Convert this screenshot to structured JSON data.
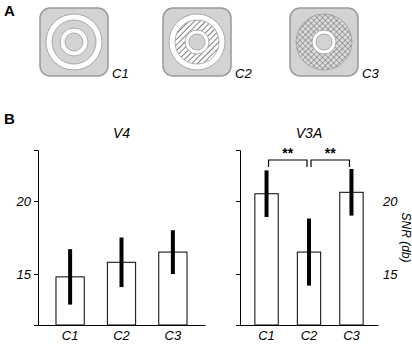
{
  "panels": {
    "A": {
      "label": "A",
      "icons": [
        "C1",
        "C2",
        "C3"
      ]
    },
    "B": {
      "label": "B"
    }
  },
  "chart_data": [
    {
      "type": "bar",
      "title": "V4",
      "categories": [
        "C1",
        "C2",
        "C3"
      ],
      "values": [
        14.8,
        15.8,
        16.5
      ],
      "errors": [
        1.9,
        1.7,
        1.5
      ],
      "color": "#ffffff",
      "ylim": [
        11.5,
        23.5
      ],
      "yticks": [
        15,
        20
      ]
    },
    {
      "type": "bar",
      "title": "V3A",
      "y_label": "SNR (db)",
      "categories": [
        "C1",
        "C2",
        "C3"
      ],
      "values": [
        20.5,
        16.5,
        20.6
      ],
      "errors": [
        1.6,
        2.3,
        1.6
      ],
      "color": "#ffffff",
      "ylim": [
        11.5,
        23.5
      ],
      "yticks": [
        15,
        20
      ],
      "annotations": [
        {
          "text": "**",
          "from": 0,
          "to": 1
        },
        {
          "text": "**",
          "from": 1,
          "to": 2
        }
      ]
    }
  ]
}
